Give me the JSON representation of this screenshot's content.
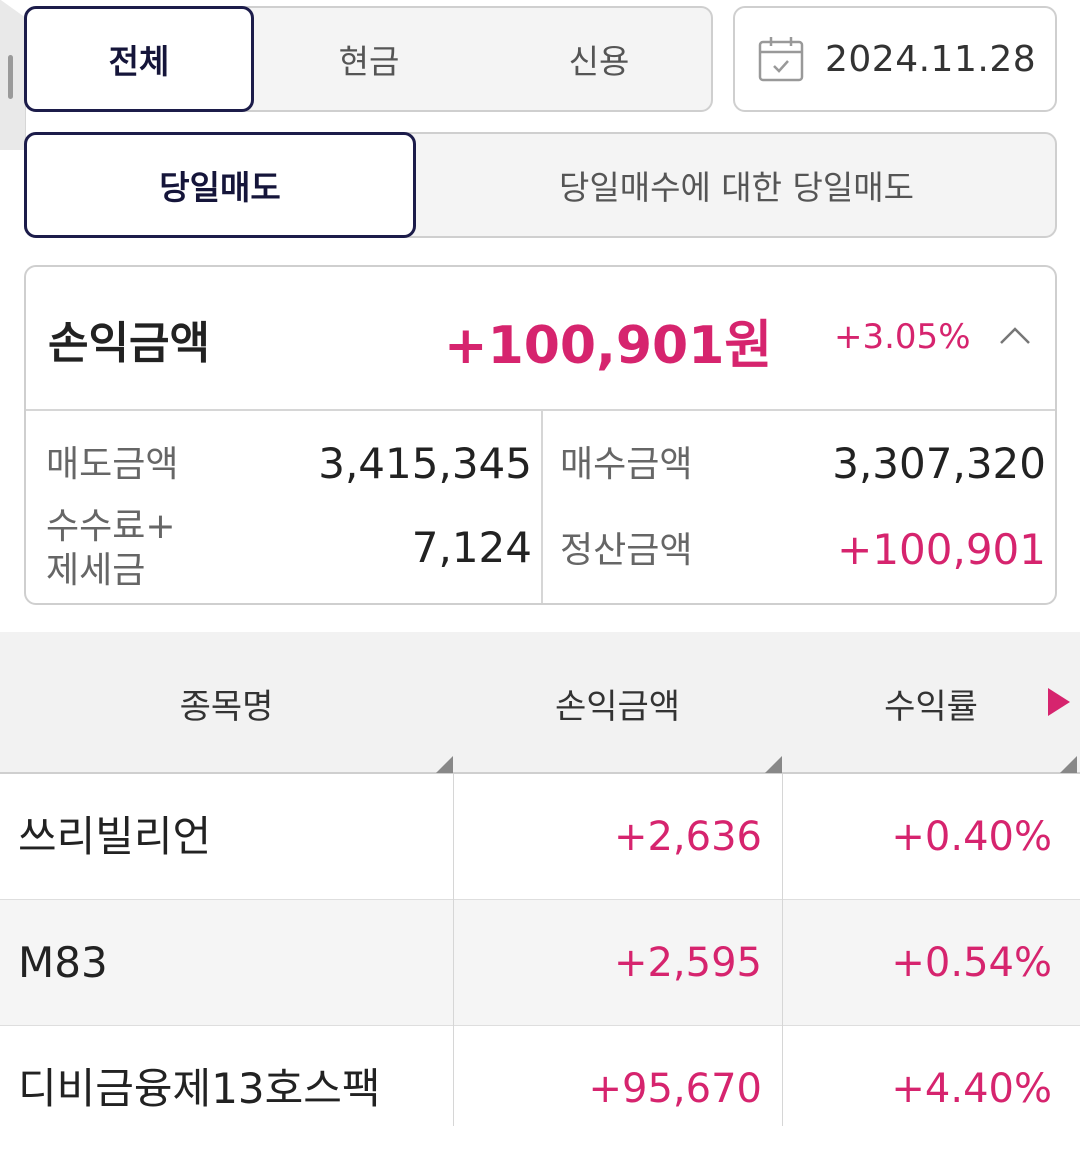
{
  "account_type_tabs": [
    {
      "label": "전체",
      "active": true
    },
    {
      "label": "현금",
      "active": false
    },
    {
      "label": "신용",
      "active": false
    }
  ],
  "date": {
    "value": "2024.11.28",
    "icon": "calendar-icon"
  },
  "sell_type_tabs": [
    {
      "label": "당일매도",
      "active": true
    },
    {
      "label": "당일매수에 대한 당일매도",
      "active": false
    }
  ],
  "summary": {
    "label": "손익금액",
    "amount": "+100,901원",
    "rate": "+3.05%",
    "collapse_icon": "chevron-up-icon",
    "sell_amount_label": "매도금액",
    "sell_amount": "3,415,345",
    "buy_amount_label": "매수금액",
    "buy_amount": "3,307,320",
    "fee_tax_label_line1": "수수료+",
    "fee_tax_label_line2": "제세금",
    "fee_tax": "7,124",
    "settlement_label": "정산금액",
    "settlement": "+100,901"
  },
  "table": {
    "headers": [
      "종목명",
      "손익금액",
      "수익률"
    ],
    "rows": [
      {
        "name": "쓰리빌리언",
        "pl": "+2,636",
        "rate": "+0.40%"
      },
      {
        "name": "M83",
        "pl": "+2,595",
        "rate": "+0.54%"
      },
      {
        "name": "디비금융제13호스팩",
        "pl": "+95,670",
        "rate": "+4.40%"
      }
    ]
  },
  "colors": {
    "accent": "#d6246e",
    "navy": "#1c1c4a"
  }
}
